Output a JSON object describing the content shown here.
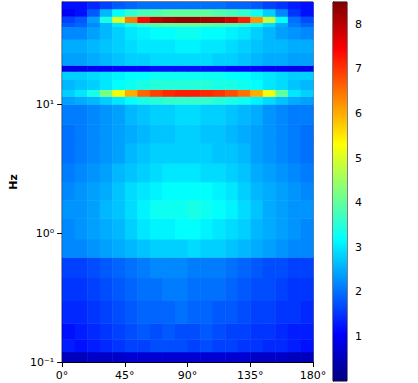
{
  "chart_data": {
    "type": "heatmap",
    "y_label": "Hz",
    "log": "y",
    "grid": false,
    "xlim": [
      0,
      180
    ],
    "xticks": [
      {
        "value": 0,
        "label": "0°"
      },
      {
        "value": 45,
        "label": "45°"
      },
      {
        "value": 90,
        "label": "90°"
      },
      {
        "value": 135,
        "label": "135°"
      },
      {
        "value": 180,
        "label": "180°"
      }
    ],
    "ylim": [
      0.1,
      62
    ],
    "yticks": [
      {
        "value": 0.1,
        "label": "10⁻¹"
      },
      {
        "value": 1,
        "label": "10⁰"
      },
      {
        "value": 10,
        "label": "10¹"
      }
    ],
    "x_edges": [
      0,
      9,
      18,
      27,
      36,
      45,
      54,
      63,
      72,
      81,
      90,
      99,
      108,
      117,
      126,
      135,
      144,
      153,
      162,
      171,
      180
    ],
    "y_edges": [
      0.1,
      0.12,
      0.15,
      0.2,
      0.3,
      0.45,
      0.65,
      0.9,
      1.3,
      1.8,
      2.5,
      3.5,
      5,
      7,
      10,
      11.5,
      13,
      15.5,
      18,
      20,
      25,
      32,
      40,
      43,
      48,
      55,
      62
    ],
    "values": [
      [
        0.5,
        0.5,
        0.6,
        0.6,
        0.6,
        0.7,
        0.7,
        0.7,
        0.7,
        0.7,
        0.7,
        0.7,
        0.7,
        0.7,
        0.7,
        0.6,
        0.6,
        0.6,
        0.5,
        0.5
      ],
      [
        1.3,
        1.2,
        1.3,
        1.4,
        1.5,
        1.6,
        1.6,
        1.7,
        1.7,
        1.7,
        1.6,
        1.7,
        1.6,
        1.6,
        1.5,
        1.5,
        1.4,
        1.4,
        1.3,
        1.2
      ],
      [
        1.2,
        1.3,
        1.4,
        1.5,
        1.6,
        1.7,
        1.8,
        1.7,
        1.8,
        1.7,
        1.7,
        1.8,
        1.7,
        1.6,
        1.6,
        1.5,
        1.5,
        1.4,
        1.3,
        1.3
      ],
      [
        1.4,
        1.4,
        1.5,
        1.6,
        1.7,
        1.8,
        1.9,
        1.9,
        1.9,
        2.0,
        1.9,
        1.9,
        1.8,
        1.8,
        1.7,
        1.6,
        1.6,
        1.5,
        1.5,
        1.4
      ],
      [
        1.5,
        1.5,
        1.6,
        1.7,
        1.8,
        1.9,
        2.0,
        2.0,
        2.1,
        2.1,
        2.0,
        2.0,
        2.0,
        1.9,
        1.8,
        1.7,
        1.7,
        1.6,
        1.5,
        1.5
      ],
      [
        1.6,
        1.6,
        1.7,
        1.8,
        1.9,
        2.0,
        2.1,
        2.2,
        2.2,
        2.2,
        2.1,
        2.1,
        2.1,
        2.0,
        1.9,
        1.8,
        1.7,
        1.7,
        1.6,
        1.6
      ],
      [
        2.2,
        2.2,
        2.3,
        2.4,
        2.5,
        2.6,
        2.7,
        2.8,
        2.8,
        2.8,
        2.9,
        2.8,
        2.8,
        2.7,
        2.6,
        2.5,
        2.4,
        2.3,
        2.2,
        2.2
      ],
      [
        2.2,
        2.3,
        2.4,
        2.5,
        2.6,
        2.8,
        3.0,
        3.1,
        3.1,
        3.2,
        3.2,
        3.1,
        3.0,
        2.9,
        2.8,
        2.6,
        2.5,
        2.4,
        2.3,
        2.2
      ],
      [
        2.3,
        2.3,
        2.4,
        2.6,
        2.7,
        2.9,
        3.1,
        3.3,
        3.3,
        3.3,
        3.4,
        3.3,
        3.2,
        3.1,
        2.9,
        2.7,
        2.5,
        2.4,
        2.3,
        2.3
      ],
      [
        2.2,
        2.3,
        2.4,
        2.5,
        2.7,
        2.9,
        3.0,
        3.1,
        3.2,
        3.2,
        3.2,
        3.2,
        3.1,
        3.0,
        2.8,
        2.6,
        2.5,
        2.4,
        2.3,
        2.2
      ],
      [
        2.1,
        2.2,
        2.3,
        2.4,
        2.6,
        2.7,
        2.8,
        2.9,
        3.0,
        3.0,
        3.0,
        2.9,
        2.9,
        2.8,
        2.7,
        2.5,
        2.4,
        2.3,
        2.2,
        2.1
      ],
      [
        2.0,
        2.1,
        2.2,
        2.3,
        2.4,
        2.6,
        2.7,
        2.8,
        2.8,
        2.8,
        2.8,
        2.8,
        2.7,
        2.7,
        2.6,
        2.4,
        2.3,
        2.2,
        2.1,
        2.0
      ],
      [
        2.0,
        2.1,
        2.2,
        2.3,
        2.4,
        2.5,
        2.6,
        2.7,
        2.7,
        2.8,
        2.8,
        2.7,
        2.7,
        2.6,
        2.5,
        2.4,
        2.3,
        2.2,
        2.1,
        2.0
      ],
      [
        2.1,
        2.1,
        2.2,
        2.3,
        2.4,
        2.6,
        2.7,
        2.8,
        2.8,
        2.9,
        2.9,
        2.8,
        2.8,
        2.7,
        2.6,
        2.5,
        2.3,
        2.2,
        2.1,
        2.1
      ],
      [
        2.4,
        2.5,
        2.6,
        2.8,
        3.0,
        3.2,
        3.4,
        3.5,
        3.6,
        3.6,
        3.6,
        3.6,
        3.5,
        3.4,
        3.3,
        3.1,
        2.9,
        2.7,
        2.5,
        2.4
      ],
      [
        2.8,
        3.0,
        3.4,
        4.2,
        5.2,
        6.0,
        6.6,
        6.9,
        7.1,
        7.2,
        7.2,
        7.1,
        7.0,
        6.8,
        6.5,
        6.0,
        5.2,
        4.0,
        3.0,
        2.8
      ],
      [
        2.6,
        2.7,
        2.8,
        3.0,
        3.2,
        3.3,
        3.4,
        3.5,
        3.5,
        3.5,
        3.5,
        3.5,
        3.4,
        3.4,
        3.3,
        3.2,
        3.0,
        2.9,
        2.7,
        2.6
      ],
      [
        2.8,
        2.8,
        2.9,
        3.0,
        3.1,
        3.2,
        3.2,
        3.3,
        3.3,
        3.3,
        3.3,
        3.3,
        3.3,
        3.2,
        3.2,
        3.1,
        3.0,
        2.9,
        2.8,
        2.8
      ],
      [
        0.9,
        0.9,
        1.0,
        1.0,
        1.1,
        1.1,
        1.1,
        1.2,
        1.2,
        1.2,
        1.2,
        1.2,
        1.2,
        1.1,
        1.1,
        1.1,
        1.0,
        1.0,
        0.9,
        0.9
      ],
      [
        2.4,
        2.4,
        2.5,
        2.6,
        2.7,
        2.8,
        2.8,
        2.9,
        2.9,
        2.9,
        2.9,
        2.9,
        2.8,
        2.8,
        2.7,
        2.6,
        2.5,
        2.5,
        2.4,
        2.4
      ],
      [
        2.5,
        2.5,
        2.6,
        2.7,
        2.8,
        2.9,
        3.0,
        3.0,
        3.0,
        3.1,
        3.1,
        3.0,
        3.0,
        2.9,
        2.8,
        2.7,
        2.6,
        2.6,
        2.5,
        2.5
      ],
      [
        2.2,
        2.2,
        2.4,
        2.6,
        2.8,
        3.0,
        3.1,
        3.2,
        3.2,
        3.3,
        3.3,
        3.2,
        3.2,
        3.1,
        3.0,
        2.8,
        2.6,
        2.4,
        2.3,
        2.2
      ],
      [
        1.8,
        1.9,
        2.2,
        2.6,
        3.0,
        3.4,
        3.7,
        3.9,
        4.0,
        4.0,
        4.0,
        4.0,
        3.9,
        3.8,
        3.6,
        3.3,
        2.9,
        2.5,
        2.1,
        1.9
      ],
      [
        1.6,
        1.8,
        2.4,
        3.4,
        5.0,
        6.4,
        7.4,
        8.0,
        8.2,
        8.3,
        8.3,
        8.2,
        8.1,
        7.8,
        7.2,
        6.2,
        4.8,
        3.2,
        2.0,
        1.7
      ],
      [
        1.0,
        1.2,
        1.8,
        2.6,
        3.2,
        3.6,
        3.8,
        3.9,
        4.0,
        4.0,
        4.0,
        4.0,
        3.9,
        3.8,
        3.6,
        3.3,
        2.8,
        2.2,
        1.5,
        1.2
      ],
      [
        1.2,
        1.2,
        1.4,
        1.6,
        1.8,
        1.9,
        2.0,
        2.0,
        2.0,
        2.0,
        2.0,
        2.0,
        2.0,
        1.9,
        1.9,
        1.8,
        1.6,
        1.5,
        1.3,
        1.2
      ]
    ],
    "colorbar": {
      "range": [
        0,
        8.5
      ],
      "ticks": [
        1,
        2,
        3,
        4,
        5,
        6,
        7,
        8
      ]
    }
  }
}
